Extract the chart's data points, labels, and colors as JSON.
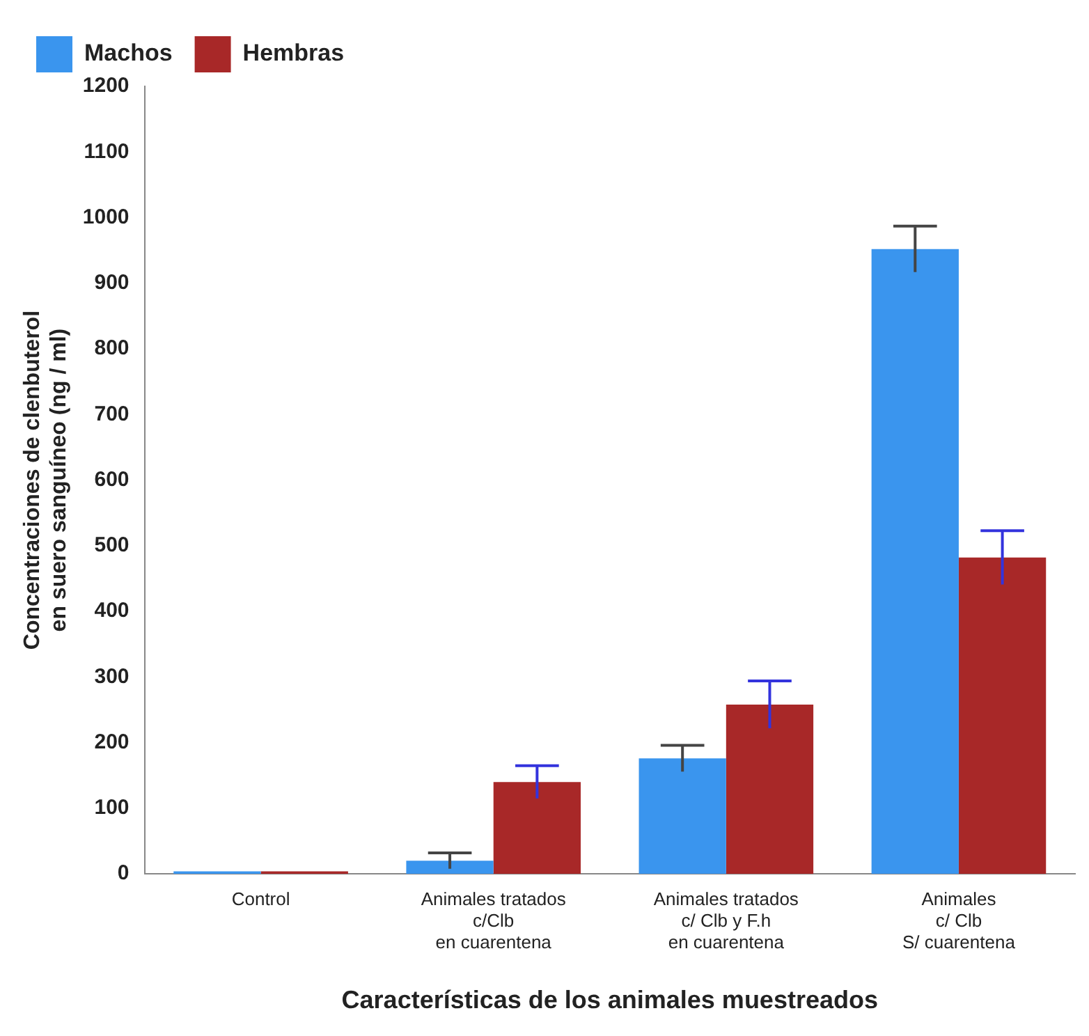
{
  "chart_data": {
    "type": "bar",
    "xlabel": "Características de los animales muestreados",
    "ylabel": "Concentraciones de clenbuterol\nen suero sanguíneo (ng / ml)",
    "categories": [
      "Control",
      "Animales tratados\nc/Clb\nen cuarentena",
      "Animales tratados\nc/ Clb y F.h\nen cuarentena",
      "Animales\nc/ Clb\nS/ cuarentena"
    ],
    "series": [
      {
        "name": "Machos",
        "color": "#3a95ee",
        "values": [
          4,
          20,
          176,
          952
        ],
        "errors": [
          null,
          12,
          20,
          35
        ]
      },
      {
        "name": "Hembras",
        "color": "#a82828",
        "values": [
          4,
          140,
          258,
          482
        ],
        "errors": [
          null,
          25,
          36,
          41
        ]
      }
    ],
    "ylim": [
      0,
      1200
    ],
    "yticks": [
      0,
      100,
      200,
      300,
      400,
      500,
      600,
      700,
      800,
      900,
      1000,
      1100,
      1200
    ],
    "grid": false,
    "legend": "top left"
  }
}
